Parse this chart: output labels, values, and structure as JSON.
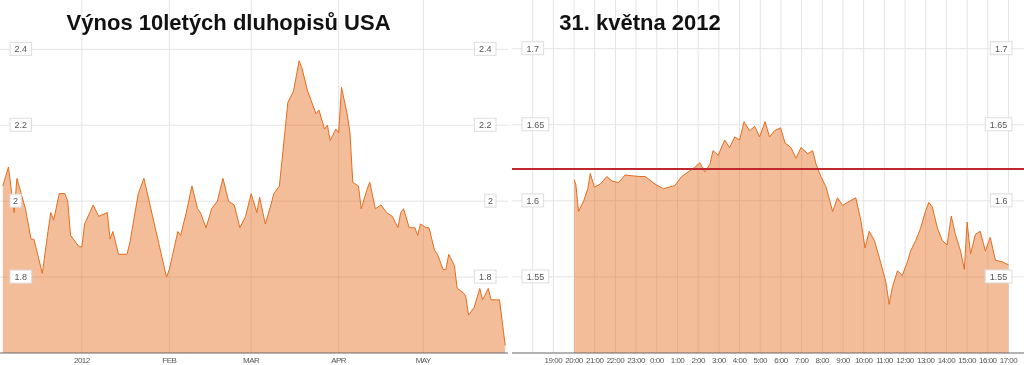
{
  "chart_data": [
    {
      "type": "area",
      "title": "Výnos 10letých dluhopisů USA",
      "x": [
        "2011-12-04",
        "2011-12-06",
        "2011-12-07",
        "2011-12-08",
        "2011-12-09",
        "2011-12-12",
        "2011-12-14",
        "2011-12-15",
        "2011-12-18",
        "2011-12-20",
        "2011-12-21",
        "2011-12-22",
        "2011-12-24",
        "2011-12-26",
        "2011-12-27",
        "2011-12-28",
        "2011-12-31",
        "2012-01-01",
        "2012-01-02",
        "2012-01-05",
        "2012-01-07",
        "2012-01-10",
        "2012-01-11",
        "2012-01-12",
        "2012-01-14",
        "2012-01-17",
        "2012-01-18",
        "2012-01-21",
        "2012-01-23",
        "2012-01-27",
        "2012-01-31",
        "2012-02-01",
        "2012-02-04",
        "2012-02-05",
        "2012-02-07",
        "2012-02-09",
        "2012-02-11",
        "2012-02-12",
        "2012-02-14",
        "2012-02-16",
        "2012-02-18",
        "2012-02-20",
        "2012-02-22",
        "2012-02-24",
        "2012-02-26",
        "2012-02-28",
        "2012-03-01",
        "2012-03-03",
        "2012-03-04",
        "2012-03-06",
        "2012-03-08",
        "2012-03-09",
        "2012-03-11",
        "2012-03-14",
        "2012-03-16",
        "2012-03-18",
        "2012-03-19",
        "2012-03-21",
        "2012-03-24",
        "2012-03-25",
        "2012-03-27",
        "2012-03-28",
        "2012-03-29",
        "2012-03-31",
        "2012-04-01",
        "2012-04-02",
        "2012-04-04",
        "2012-04-05",
        "2012-04-06",
        "2012-04-08",
        "2012-04-09",
        "2012-04-11",
        "2012-04-12",
        "2012-04-14",
        "2012-04-16",
        "2012-04-18",
        "2012-04-20",
        "2012-04-22",
        "2012-04-23",
        "2012-04-24",
        "2012-04-26",
        "2012-04-28",
        "2012-04-29",
        "2012-04-30",
        "2012-05-02",
        "2012-05-03",
        "2012-05-05",
        "2012-05-06",
        "2012-05-08",
        "2012-05-09",
        "2012-05-10",
        "2012-05-12",
        "2012-05-13",
        "2012-05-15",
        "2012-05-16",
        "2012-05-17",
        "2012-05-19",
        "2012-05-21",
        "2012-05-22",
        "2012-05-24",
        "2012-05-25",
        "2012-05-27",
        "2012-05-28",
        "2012-05-30"
      ],
      "series": [
        {
          "color": "#e56d1e",
          "values": [
            2.04,
            2.09,
            2.03,
            1.97,
            2.06,
            1.98,
            1.9,
            1.9,
            1.81,
            1.92,
            1.97,
            1.95,
            2.02,
            2.02,
            2.0,
            1.91,
            1.88,
            1.88,
            1.94,
            1.99,
            1.96,
            1.97,
            1.9,
            1.92,
            1.86,
            1.86,
            1.89,
            2.02,
            2.06,
            1.93,
            1.8,
            1.82,
            1.92,
            1.91,
            1.97,
            2.04,
            1.98,
            1.97,
            1.93,
            1.98,
            2.0,
            2.06,
            2.0,
            1.99,
            1.93,
            1.96,
            2.02,
            1.97,
            2.01,
            1.94,
            1.99,
            2.02,
            2.04,
            2.26,
            2.29,
            2.37,
            2.35,
            2.29,
            2.23,
            2.24,
            2.19,
            2.2,
            2.16,
            2.19,
            2.18,
            2.3,
            2.23,
            2.18,
            2.05,
            2.04,
            1.98,
            2.03,
            2.05,
            1.98,
            1.99,
            1.97,
            1.96,
            1.93,
            1.97,
            1.98,
            1.93,
            1.93,
            1.91,
            1.94,
            1.93,
            1.93,
            1.87,
            1.86,
            1.82,
            1.82,
            1.86,
            1.83,
            1.77,
            1.76,
            1.75,
            1.7,
            1.72,
            1.77,
            1.74,
            1.77,
            1.74,
            1.74,
            1.74,
            1.62
          ]
        }
      ],
      "xlim": [
        "2011-12-03",
        "2012-05-31"
      ],
      "xticks": [
        {
          "value": "2012-01-01",
          "label": "2012"
        },
        {
          "value": "2012-02-01",
          "label": "FEB"
        },
        {
          "value": "2012-03-01",
          "label": "MAR"
        },
        {
          "value": "2012-04-01",
          "label": "APR"
        },
        {
          "value": "2012-05-01",
          "label": "MAY"
        }
      ],
      "ylim": [
        1.6,
        2.53
      ],
      "yticks": [
        1.8,
        2,
        2.2,
        2.4
      ],
      "y2lim": [
        1.6,
        2.53
      ],
      "y2ticks": [
        1.8,
        2,
        2.2,
        2.4
      ],
      "grid": true
    },
    {
      "type": "area",
      "title": "31. května 2012",
      "x": [
        "2012-05-30T20:00",
        "2012-05-30T20:05",
        "2012-05-30T20:13",
        "2012-05-30T20:28",
        "2012-05-30T20:40",
        "2012-05-30T20:47",
        "2012-05-30T20:59",
        "2012-05-30T21:16",
        "2012-05-30T21:35",
        "2012-05-30T21:50",
        "2012-05-30T22:09",
        "2012-05-30T22:28",
        "2012-05-30T23:07",
        "2012-05-30T23:26",
        "2012-05-30T23:55",
        "2012-05-31T00:19",
        "2012-05-31T00:52",
        "2012-05-31T01:12",
        "2012-05-31T01:31",
        "2012-05-31T01:50",
        "2012-05-31T02:05",
        "2012-05-31T02:19",
        "2012-05-31T02:34",
        "2012-05-31T02:43",
        "2012-05-31T02:58",
        "2012-05-31T03:17",
        "2012-05-31T03:31",
        "2012-05-31T03:46",
        "2012-05-31T04:00",
        "2012-05-31T04:13",
        "2012-05-31T04:29",
        "2012-05-31T04:44",
        "2012-05-31T04:58",
        "2012-05-31T05:14",
        "2012-05-31T05:27",
        "2012-05-31T05:41",
        "2012-05-31T05:59",
        "2012-05-31T06:12",
        "2012-05-31T06:29",
        "2012-05-31T06:44",
        "2012-05-31T06:58",
        "2012-05-31T07:18",
        "2012-05-31T07:32",
        "2012-05-31T07:42",
        "2012-05-31T07:56",
        "2012-05-31T08:11",
        "2012-05-31T08:30",
        "2012-05-31T08:44",
        "2012-05-31T08:59",
        "2012-05-31T09:13",
        "2012-05-31T09:37",
        "2012-05-31T09:52",
        "2012-05-31T10:04",
        "2012-05-31T10:16",
        "2012-05-31T10:31",
        "2012-05-31T10:45",
        "2012-05-31T11:04",
        "2012-05-31T11:14",
        "2012-05-31T11:23",
        "2012-05-31T11:38",
        "2012-05-31T11:52",
        "2012-05-31T12:07",
        "2012-05-31T12:16",
        "2012-05-31T12:31",
        "2012-05-31T12:45",
        "2012-05-31T12:59",
        "2012-05-31T13:09",
        "2012-05-31T13:19",
        "2012-05-31T13:34",
        "2012-05-31T13:48",
        "2012-05-31T14:02",
        "2012-05-31T14:14",
        "2012-05-31T14:26",
        "2012-05-31T14:41",
        "2012-05-31T14:52",
        "2012-05-31T15:00",
        "2012-05-31T15:10",
        "2012-05-31T15:24",
        "2012-05-31T15:38",
        "2012-05-31T15:53",
        "2012-05-31T16:07",
        "2012-05-31T16:22",
        "2012-05-31T16:41",
        "2012-05-31T17:00"
      ],
      "series": [
        {
          "color": "#e56d1e",
          "values": [
            1.614,
            1.611,
            1.593,
            1.6,
            1.608,
            1.618,
            1.609,
            1.611,
            1.616,
            1.613,
            1.612,
            1.617,
            1.616,
            1.616,
            1.611,
            1.608,
            1.61,
            1.616,
            1.619,
            1.622,
            1.625,
            1.619,
            1.624,
            1.633,
            1.63,
            1.64,
            1.635,
            1.642,
            1.64,
            1.652,
            1.646,
            1.649,
            1.642,
            1.652,
            1.642,
            1.646,
            1.648,
            1.638,
            1.635,
            1.628,
            1.635,
            1.631,
            1.633,
            1.624,
            1.616,
            1.609,
            1.593,
            1.602,
            1.597,
            1.599,
            1.602,
            1.587,
            1.569,
            1.58,
            1.574,
            1.563,
            1.547,
            1.532,
            1.543,
            1.554,
            1.551,
            1.56,
            1.567,
            1.574,
            1.582,
            1.593,
            1.599,
            1.596,
            1.582,
            1.574,
            1.571,
            1.59,
            1.578,
            1.567,
            1.555,
            1.586,
            1.565,
            1.578,
            1.58,
            1.567,
            1.576,
            1.561,
            1.56,
            1.558
          ]
        }
      ],
      "xlim": [
        "2012-05-30T17:00",
        "2012-05-31T17:45"
      ],
      "xticks": [
        {
          "value": "2012-05-30T18:00",
          "label": null
        },
        {
          "value": "2012-05-30T19:00",
          "label": "19:00"
        },
        {
          "value": "2012-05-30T20:00",
          "label": "20:00"
        },
        {
          "value": "2012-05-30T21:00",
          "label": "21:00"
        },
        {
          "value": "2012-05-30T22:00",
          "label": "22:00"
        },
        {
          "value": "2012-05-30T23:00",
          "label": "23:00"
        },
        {
          "value": "2012-05-31T00:00",
          "label": "0:00"
        },
        {
          "value": "2012-05-31T01:00",
          "label": "1:00"
        },
        {
          "value": "2012-05-31T02:00",
          "label": "2:00"
        },
        {
          "value": "2012-05-31T03:00",
          "label": "3:00"
        },
        {
          "value": "2012-05-31T04:00",
          "label": "4:00"
        },
        {
          "value": "2012-05-31T05:00",
          "label": "5:00"
        },
        {
          "value": "2012-05-31T06:00",
          "label": "6:00"
        },
        {
          "value": "2012-05-31T07:00",
          "label": "7:00"
        },
        {
          "value": "2012-05-31T08:00",
          "label": "8:00"
        },
        {
          "value": "2012-05-31T09:00",
          "label": "9:00"
        },
        {
          "value": "2012-05-31T10:00",
          "label": "10:00"
        },
        {
          "value": "2012-05-31T11:00",
          "label": "11:00"
        },
        {
          "value": "2012-05-31T12:00",
          "label": "12:00"
        },
        {
          "value": "2012-05-31T13:00",
          "label": "13:00"
        },
        {
          "value": "2012-05-31T14:00",
          "label": "14:00"
        },
        {
          "value": "2012-05-31T15:00",
          "label": "15:00"
        },
        {
          "value": "2012-05-31T16:00",
          "label": "16:00"
        },
        {
          "value": "2012-05-31T17:00",
          "label": "17:00"
        }
      ],
      "ylim": [
        1.5,
        1.732
      ],
      "yticks": [
        1.55,
        1.6,
        1.65,
        1.7
      ],
      "y2lim": [
        1.5,
        1.732
      ],
      "y2ticks": [
        1.55,
        1.6,
        1.65,
        1.7
      ],
      "grid": true,
      "ref_lines": [
        {
          "axis": "y",
          "value": 1.621,
          "color": "#c0282d"
        }
      ]
    }
  ]
}
